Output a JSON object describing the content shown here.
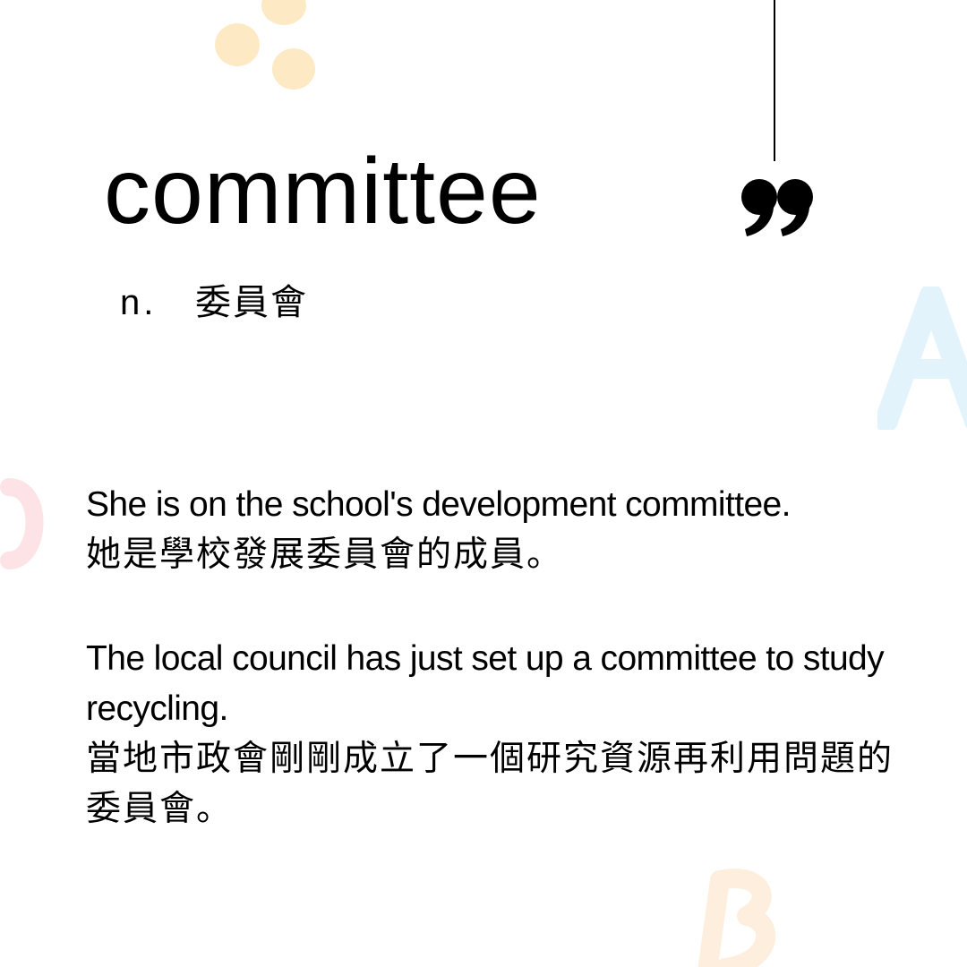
{
  "card": {
    "word": "committee",
    "part_of_speech": "n.",
    "meaning": "委員會"
  },
  "examples": [
    {
      "en": "She is on the school's development committee.",
      "zh": "她是學校發展委員會的成員。"
    },
    {
      "en": "The local council has just set up a committee to study recycling.",
      "zh": "當地市政會剛剛成立了一個研究資源再利用問題的委員會。"
    }
  ],
  "decorations": {
    "quote_icon": "closing-quote-icon",
    "letter_a_color": "#e3f3fb",
    "letter_c_color": "#fde3e6",
    "letter_b_color": "#fdeedd",
    "dot_color": "#fde9c4"
  }
}
